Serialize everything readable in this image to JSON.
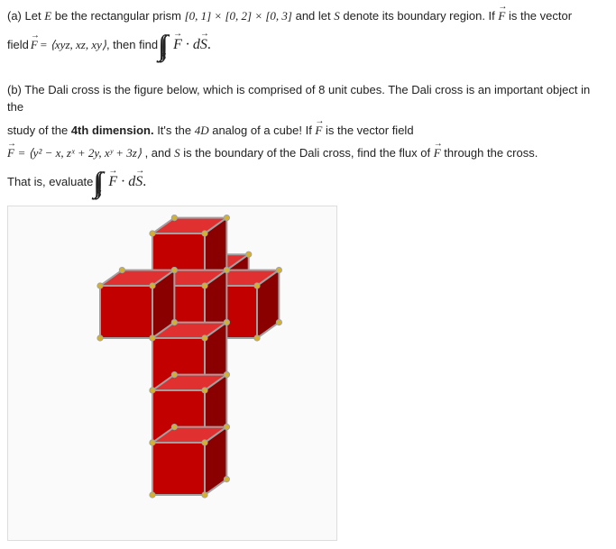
{
  "partA": {
    "label": "(a) Let ",
    "E": "E",
    "prismText": " be the rectangular prism ",
    "interval": "[0, 1] × [0, 2] × [0, 3]",
    "afterInterval": " and let ",
    "S": "S",
    "afterS": " denote its boundary region. If ",
    "F": "F",
    "isVec": " is the vector",
    "line2a": "field ",
    "fieldDef": " = ⟨xyz, xz, xy⟩",
    "thenFind": " , then find ",
    "integralSub": "S",
    "integralBody": " · d",
    "dS": "S",
    "period": "."
  },
  "partB": {
    "label": "(b) The Dali cross is the figure below, which is comprised of 8 unit cubes. The Dali cross is an important object in the",
    "line2a": "study of the ",
    "fourth": "4th dimension.",
    "line2b": " It's the ",
    "fourD": "4D",
    "line2c": " analog of a cube! If ",
    "F": "F",
    "isVec": " is the vector field",
    "fieldDef": " = ⟨y² − x, zˣ + 2y, xʸ + 3z⟩",
    "afterField": " , and ",
    "S": "S",
    "afterS": " is the boundary of the Dali cross, find the flux of ",
    "through": " through the cross.",
    "thatIs": "That is, evaluate ",
    "integralSub": "S",
    "integralBody": " · d",
    "dS": "S",
    "period": "."
  },
  "figure": {
    "type": "infographic",
    "background": "#fafafa",
    "cubeFaceColors": {
      "front": "#c20000",
      "side": "#8a0000",
      "top": "#e03030",
      "edge": "#a0a0a0",
      "vertex": "#d4b030"
    },
    "cubeSize": 58,
    "lineWidth": 2,
    "vertexRadius": 3.2,
    "cubes": [
      {
        "ox": 160,
        "oy": 30
      },
      {
        "ox": 160,
        "oy": 88
      },
      {
        "ox": 102,
        "oy": 88
      },
      {
        "ox": 218,
        "oy": 88
      },
      {
        "ox": 160,
        "oy": 88,
        "back": true
      },
      {
        "ox": 160,
        "oy": 146
      },
      {
        "ox": 160,
        "oy": 204
      },
      {
        "ox": 160,
        "oy": 262
      }
    ]
  }
}
